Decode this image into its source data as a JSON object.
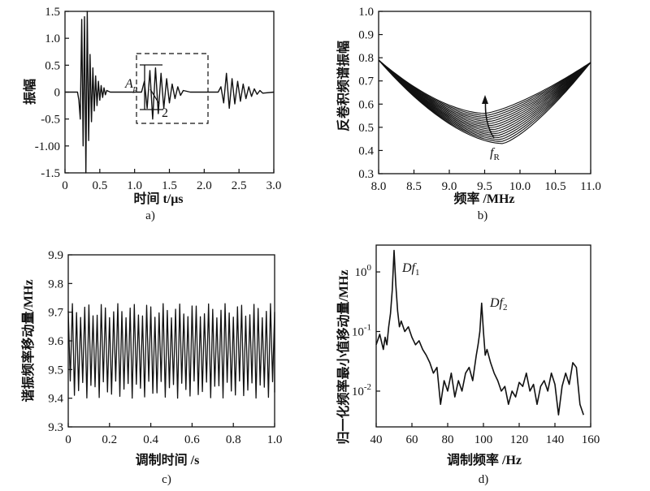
{
  "chart_data": [
    {
      "id": "a",
      "type": "line",
      "caption": "a)",
      "xlabel": "时间 t/μs",
      "ylabel": "振幅",
      "xlim": [
        0,
        3.0
      ],
      "ylim": [
        -1.5,
        1.5
      ],
      "xticks": [
        "0",
        "0.5",
        "1.0",
        "1.5",
        "2.0",
        "2.5",
        "3.0"
      ],
      "xtick_values": [
        0,
        0.5,
        1.0,
        1.5,
        2.0,
        2.5,
        3.0
      ],
      "yticks": [
        "-1.5",
        "-1.00",
        "-0.5",
        "0",
        "0.5",
        "1.0",
        "1.5"
      ],
      "ytick_values": [
        -1.5,
        -1.0,
        -0.5,
        0,
        0.5,
        1.0,
        1.5
      ],
      "annotations": [
        "A",
        "p",
        "2"
      ],
      "series": [
        {
          "x": [
            0,
            0.18,
            0.2,
            0.22,
            0.24,
            0.26,
            0.28,
            0.3,
            0.32,
            0.34,
            0.36,
            0.38,
            0.4,
            0.42,
            0.44,
            0.46,
            0.48,
            0.5,
            0.52,
            0.54,
            0.56,
            0.58,
            0.6,
            0.65,
            1.0,
            1.1,
            1.14,
            1.18,
            1.22,
            1.26,
            1.3,
            1.34,
            1.38,
            1.42,
            1.46,
            1.5,
            1.54,
            1.58,
            1.62,
            1.66,
            1.7,
            1.8,
            2.2,
            2.24,
            2.28,
            2.32,
            2.36,
            2.4,
            2.44,
            2.48,
            2.52,
            2.56,
            2.6,
            2.64,
            2.68,
            2.72,
            2.76,
            2.8,
            2.84,
            3.0
          ],
          "y": [
            0,
            0,
            -0.15,
            -0.5,
            1.35,
            -1.0,
            1.4,
            -1.5,
            1.5,
            -0.9,
            0.7,
            -0.55,
            0.45,
            -0.35,
            0.3,
            -0.25,
            0.2,
            -0.15,
            0.12,
            -0.1,
            0.08,
            -0.05,
            0.03,
            0,
            0,
            0,
            0.2,
            -0.3,
            0.4,
            -0.5,
            0.45,
            -0.4,
            0.35,
            -0.3,
            0.25,
            -0.2,
            0.15,
            -0.12,
            0.1,
            -0.06,
            0.03,
            0,
            0,
            0.1,
            -0.2,
            0.35,
            -0.3,
            0.25,
            -0.22,
            0.2,
            -0.17,
            0.15,
            -0.12,
            0.1,
            -0.08,
            0.06,
            -0.04,
            0.03,
            -0.02,
            0
          ]
        }
      ]
    },
    {
      "id": "b",
      "type": "line",
      "caption": "b)",
      "xlabel": "频率 /MHz",
      "ylabel": "反卷积频谱振幅",
      "xlim": [
        8.0,
        11.0
      ],
      "ylim": [
        0.3,
        1.0
      ],
      "xticks": [
        "8.0",
        "8.5",
        "9.0",
        "9.5",
        "10.0",
        "10.5",
        "11.0"
      ],
      "xtick_values": [
        8.0,
        8.5,
        9.0,
        9.5,
        10.0,
        10.5,
        11.0
      ],
      "yticks": [
        "0.3",
        "0.4",
        "0.5",
        "0.6",
        "0.7",
        "0.8",
        "0.9",
        "1.0"
      ],
      "ytick_values": [
        0.3,
        0.4,
        0.5,
        0.6,
        0.7,
        0.8,
        0.9,
        1.0
      ],
      "annotations": [
        "f",
        "R"
      ],
      "curve_family": {
        "count": 16,
        "start": [
          8.0,
          0.79
        ],
        "end": [
          11.0,
          0.78
        ],
        "min_x_range": [
          9.5,
          9.75
        ],
        "min_y_range": [
          0.56,
          0.43
        ]
      }
    },
    {
      "id": "c",
      "type": "line",
      "caption": "c)",
      "xlabel": "调制时间 /s",
      "ylabel": "谐振频率移动量/MHz",
      "xlim": [
        0,
        1.0
      ],
      "ylim": [
        9.3,
        9.9
      ],
      "xticks": [
        "0",
        "0.2",
        "0.4",
        "0.6",
        "0.8",
        "1.0"
      ],
      "xtick_values": [
        0,
        0.2,
        0.4,
        0.6,
        0.8,
        1.0
      ],
      "yticks": [
        "9.3",
        "9.4",
        "9.5",
        "9.6",
        "9.7",
        "9.8",
        "9.9"
      ],
      "ytick_values": [
        9.3,
        9.4,
        9.5,
        9.6,
        9.7,
        9.8,
        9.9
      ],
      "signal": {
        "cycles": 50,
        "mean": 9.57,
        "peak_range": [
          9.68,
          9.73
        ],
        "trough_range": [
          9.4,
          9.46
        ]
      }
    },
    {
      "id": "d",
      "type": "line",
      "caption": "d)",
      "xlabel": "调制频率 /Hz",
      "ylabel": "归一化频率最小值移动量/MHz",
      "xlim": [
        40,
        160
      ],
      "ylim_log10": [
        -2.6,
        0.45
      ],
      "yscale": "log",
      "xticks": [
        "40",
        "60",
        "80",
        "100",
        "120",
        "140",
        "160"
      ],
      "xtick_values": [
        40,
        60,
        80,
        100,
        120,
        140,
        160
      ],
      "yticks": [
        "10",
        "10",
        "10"
      ],
      "ytick_exponents": [
        "0",
        "-1",
        "-2"
      ],
      "ytick_values": [
        1,
        0.1,
        0.01
      ],
      "annotations": [
        "Df",
        "1",
        "Df",
        "2"
      ],
      "series": [
        {
          "x": [
            40,
            42,
            44,
            45,
            46,
            47,
            48,
            49,
            50,
            51,
            52,
            53,
            54,
            56,
            58,
            60,
            62,
            64,
            66,
            68,
            70,
            72,
            74,
            76,
            78,
            80,
            82,
            84,
            86,
            88,
            90,
            92,
            94,
            96,
            97,
            98,
            99,
            100,
            101,
            102,
            104,
            106,
            108,
            110,
            112,
            114,
            116,
            118,
            120,
            122,
            124,
            126,
            128,
            130,
            132,
            134,
            136,
            138,
            140,
            142,
            144,
            146,
            148,
            150,
            152,
            154,
            156
          ],
          "y": [
            0.06,
            0.09,
            0.05,
            0.08,
            0.06,
            0.12,
            0.2,
            0.5,
            2.3,
            0.6,
            0.22,
            0.12,
            0.15,
            0.1,
            0.12,
            0.08,
            0.06,
            0.07,
            0.05,
            0.04,
            0.03,
            0.02,
            0.025,
            0.006,
            0.015,
            0.01,
            0.02,
            0.008,
            0.015,
            0.01,
            0.02,
            0.025,
            0.015,
            0.04,
            0.06,
            0.1,
            0.3,
            0.1,
            0.04,
            0.05,
            0.03,
            0.02,
            0.015,
            0.01,
            0.012,
            0.006,
            0.01,
            0.008,
            0.014,
            0.012,
            0.02,
            0.01,
            0.013,
            0.006,
            0.012,
            0.015,
            0.01,
            0.02,
            0.013,
            0.004,
            0.012,
            0.02,
            0.013,
            0.03,
            0.025,
            0.006,
            0.004
          ]
        }
      ]
    }
  ]
}
